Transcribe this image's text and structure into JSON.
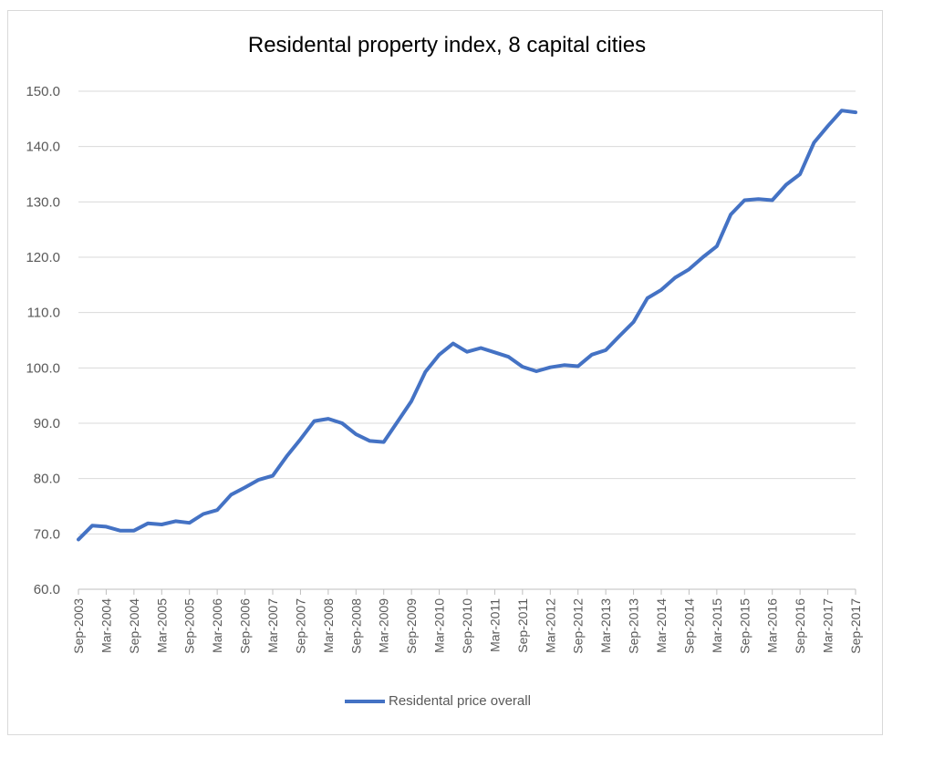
{
  "colors": {
    "series": "#4472C4",
    "grid": "#d9d9d9",
    "axis": "#bfbfbf",
    "tick_text": "#595959"
  },
  "chart_data": {
    "type": "line",
    "title": "Residental property index, 8 capital cities",
    "xlabel": "",
    "ylabel": "",
    "ylim": [
      60,
      150
    ],
    "yticks": [
      "60.0",
      "70.0",
      "80.0",
      "90.0",
      "100.0",
      "110.0",
      "120.0",
      "130.0",
      "140.0",
      "150.0"
    ],
    "grid": true,
    "legend_position": "bottom",
    "x": [
      "Sep-2003",
      "Dec-2003",
      "Mar-2004",
      "Jun-2004",
      "Sep-2004",
      "Dec-2004",
      "Mar-2005",
      "Jun-2005",
      "Sep-2005",
      "Dec-2005",
      "Mar-2006",
      "Jun-2006",
      "Sep-2006",
      "Dec-2006",
      "Mar-2007",
      "Jun-2007",
      "Sep-2007",
      "Dec-2007",
      "Mar-2008",
      "Jun-2008",
      "Sep-2008",
      "Dec-2008",
      "Mar-2009",
      "Jun-2009",
      "Sep-2009",
      "Dec-2009",
      "Mar-2010",
      "Jun-2010",
      "Sep-2010",
      "Dec-2010",
      "Mar-2011",
      "Jun-2011",
      "Sep-2011",
      "Dec-2011",
      "Mar-2012",
      "Jun-2012",
      "Sep-2012",
      "Dec-2012",
      "Mar-2013",
      "Jun-2013",
      "Sep-2013",
      "Dec-2013",
      "Mar-2014",
      "Jun-2014",
      "Sep-2014",
      "Dec-2014",
      "Mar-2015",
      "Jun-2015",
      "Sep-2015",
      "Dec-2015",
      "Mar-2016",
      "Jun-2016",
      "Sep-2016",
      "Dec-2016",
      "Mar-2017",
      "Jun-2017",
      "Sep-2017"
    ],
    "x_tick_labels": [
      "Sep-2003",
      "Mar-2004",
      "Sep-2004",
      "Mar-2005",
      "Sep-2005",
      "Mar-2006",
      "Sep-2006",
      "Mar-2007",
      "Sep-2007",
      "Mar-2008",
      "Sep-2008",
      "Mar-2009",
      "Sep-2009",
      "Mar-2010",
      "Sep-2010",
      "Mar-2011",
      "Sep-2011",
      "Mar-2012",
      "Sep-2012",
      "Mar-2013",
      "Sep-2013",
      "Mar-2014",
      "Sep-2014",
      "Mar-2015",
      "Sep-2015",
      "Mar-2016",
      "Sep-2016",
      "Mar-2017",
      "Sep-2017"
    ],
    "series": [
      {
        "name": "Residental price overall",
        "values": [
          69.0,
          71.5,
          71.3,
          70.6,
          70.6,
          71.9,
          71.7,
          72.3,
          72.0,
          73.6,
          74.3,
          77.1,
          78.4,
          79.8,
          80.5,
          84.0,
          87.1,
          90.4,
          90.8,
          90.0,
          88.0,
          86.8,
          86.6,
          90.3,
          94.0,
          99.3,
          102.4,
          104.4,
          102.9,
          103.6,
          102.8,
          102.0,
          100.2,
          99.4,
          100.1,
          100.5,
          100.3,
          102.4,
          103.2,
          105.8,
          108.3,
          112.6,
          114.1,
          116.3,
          117.8,
          120.0,
          122.0,
          127.7,
          130.3,
          130.5,
          130.3,
          133.1,
          135.0,
          140.7,
          143.7,
          146.5,
          146.2
        ]
      }
    ]
  }
}
